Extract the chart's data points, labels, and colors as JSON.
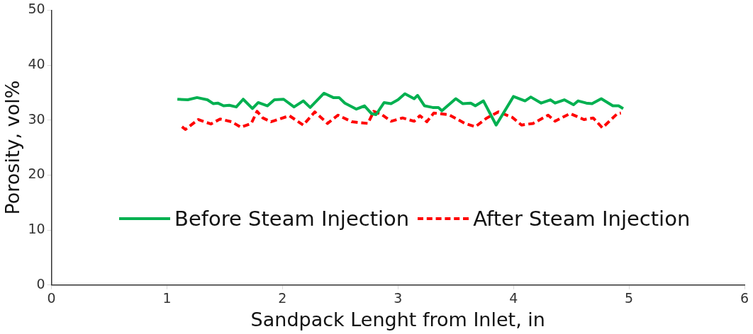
{
  "chart_data": {
    "type": "line",
    "xlabel": "Sandpack Lenght from Inlet, in",
    "ylabel": "Porosity, vol%",
    "xlim": [
      0,
      6
    ],
    "xticks": [
      0,
      1,
      2,
      3,
      4,
      5,
      6
    ],
    "ylim": [
      0,
      50
    ],
    "yticks": [
      0,
      10,
      20,
      30,
      40,
      50
    ],
    "grid": false,
    "legend": "bottom",
    "marker": "none",
    "series": [
      {
        "name": "Before Steam Injection",
        "color": "#00b050",
        "line_style": "solid",
        "x": [
          1.09,
          1.18,
          1.26,
          1.35,
          1.4,
          1.44,
          1.49,
          1.54,
          1.6,
          1.66,
          1.74,
          1.79,
          1.87,
          1.93,
          2.01,
          2.1,
          2.18,
          2.24,
          2.36,
          2.44,
          2.49,
          2.54,
          2.64,
          2.71,
          2.77,
          2.81,
          2.88,
          2.94,
          3.0,
          3.06,
          3.14,
          3.17,
          3.23,
          3.3,
          3.35,
          3.38,
          3.5,
          3.56,
          3.63,
          3.67,
          3.74,
          3.85,
          4.0,
          4.1,
          4.15,
          4.24,
          4.32,
          4.36,
          4.44,
          4.52,
          4.56,
          4.63,
          4.68,
          4.76,
          4.86,
          4.91,
          4.95
        ],
        "values": [
          33.8,
          33.7,
          34.1,
          33.7,
          33.0,
          33.1,
          32.6,
          32.7,
          32.4,
          33.8,
          32.1,
          33.2,
          32.6,
          33.7,
          33.8,
          32.4,
          33.5,
          32.3,
          34.9,
          34.1,
          34.1,
          33.1,
          32.0,
          32.6,
          31.2,
          31.0,
          33.2,
          33.0,
          33.7,
          34.8,
          33.9,
          34.5,
          32.6,
          32.3,
          32.3,
          31.7,
          33.9,
          33.0,
          33.1,
          32.6,
          33.5,
          29.1,
          34.3,
          33.5,
          34.2,
          33.1,
          33.7,
          33.1,
          33.7,
          32.8,
          33.5,
          33.1,
          33.0,
          33.9,
          32.6,
          32.6,
          32.1
        ]
      },
      {
        "name": "After Steam Injection",
        "color": "#ff0000",
        "line_style": "dashed",
        "x": [
          1.13,
          1.16,
          1.27,
          1.38,
          1.46,
          1.56,
          1.64,
          1.73,
          1.78,
          1.83,
          1.9,
          2.06,
          2.18,
          2.28,
          2.39,
          2.48,
          2.6,
          2.74,
          2.79,
          2.86,
          2.94,
          3.04,
          3.14,
          3.19,
          3.25,
          3.31,
          3.44,
          3.58,
          3.67,
          3.77,
          3.87,
          3.99,
          4.07,
          4.17,
          4.3,
          4.36,
          4.49,
          4.61,
          4.69,
          4.77,
          4.9,
          4.93
        ],
        "values": [
          28.8,
          28.3,
          30.1,
          29.3,
          30.2,
          29.7,
          28.7,
          29.4,
          31.6,
          30.4,
          29.7,
          30.8,
          29.1,
          31.5,
          29.4,
          30.9,
          29.7,
          29.4,
          31.6,
          31.0,
          29.8,
          30.4,
          29.8,
          30.8,
          29.7,
          31.3,
          31.0,
          29.4,
          28.8,
          30.4,
          31.5,
          30.5,
          29.1,
          29.4,
          30.9,
          29.8,
          31.2,
          30.1,
          30.4,
          28.6,
          31.2,
          31.3
        ]
      }
    ]
  }
}
